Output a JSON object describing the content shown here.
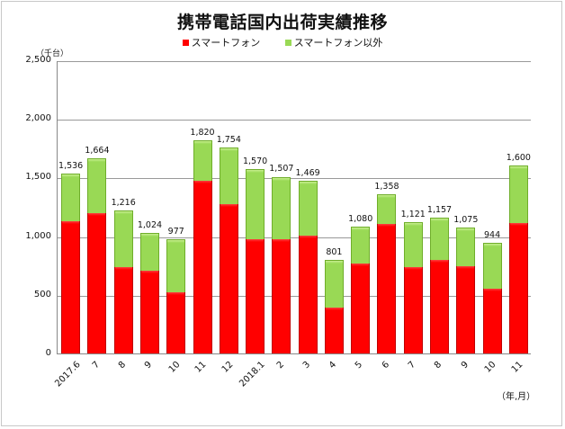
{
  "header": {
    "title": "携帯電話国内出荷実績推移"
  },
  "legend": [
    {
      "label": "スマートフォン",
      "color": "#ff0000"
    },
    {
      "label": "スマートフォン以外",
      "color": "#99d955"
    }
  ],
  "axis": {
    "y_unit": "（千台）",
    "x_unit": "（年,月）",
    "y_ticks": [
      "0",
      "500",
      "1,000",
      "1,500",
      "2,000",
      "2,500"
    ]
  },
  "chart_data": {
    "type": "bar",
    "stacked": true,
    "title": "携帯電話国内出荷実績推移",
    "xlabel": "（年,月）",
    "ylabel": "（千台）",
    "ylim": [
      0,
      2500
    ],
    "yticks": [
      0,
      500,
      1000,
      1500,
      2000,
      2500
    ],
    "grid": true,
    "legend_position": "top",
    "categories": [
      "2017.6",
      "7",
      "8",
      "9",
      "10",
      "11",
      "12",
      "2018.1",
      "2",
      "3",
      "4",
      "5",
      "6",
      "7",
      "8",
      "9",
      "10",
      "11"
    ],
    "series": [
      {
        "name": "スマートフォン",
        "color": "#ff0000",
        "values": [
          1127,
          1196,
          736,
          705,
          521,
          1472,
          1273,
          974,
          974,
          1005,
          391,
          767,
          1104,
          736,
          797,
          744,
          552,
          1112
        ]
      },
      {
        "name": "スマートフォン以外",
        "color": "#99d955",
        "values": [
          409,
          468,
          480,
          319,
          456,
          348,
          481,
          596,
          533,
          464,
          410,
          313,
          254,
          385,
          360,
          331,
          392,
          488
        ]
      }
    ],
    "totals": [
      1536,
      1664,
      1216,
      1024,
      977,
      1820,
      1754,
      1570,
      1507,
      1469,
      801,
      1080,
      1358,
      1121,
      1157,
      1075,
      944,
      1600
    ],
    "total_labels": [
      "1,536",
      "1,664",
      "1,216",
      "1,024",
      "977",
      "1,820",
      "1,754",
      "1,570",
      "1,507",
      "1,469",
      "801",
      "1,080",
      "1,358",
      "1,121",
      "1,157",
      "1,075",
      "944",
      "1,600"
    ]
  }
}
